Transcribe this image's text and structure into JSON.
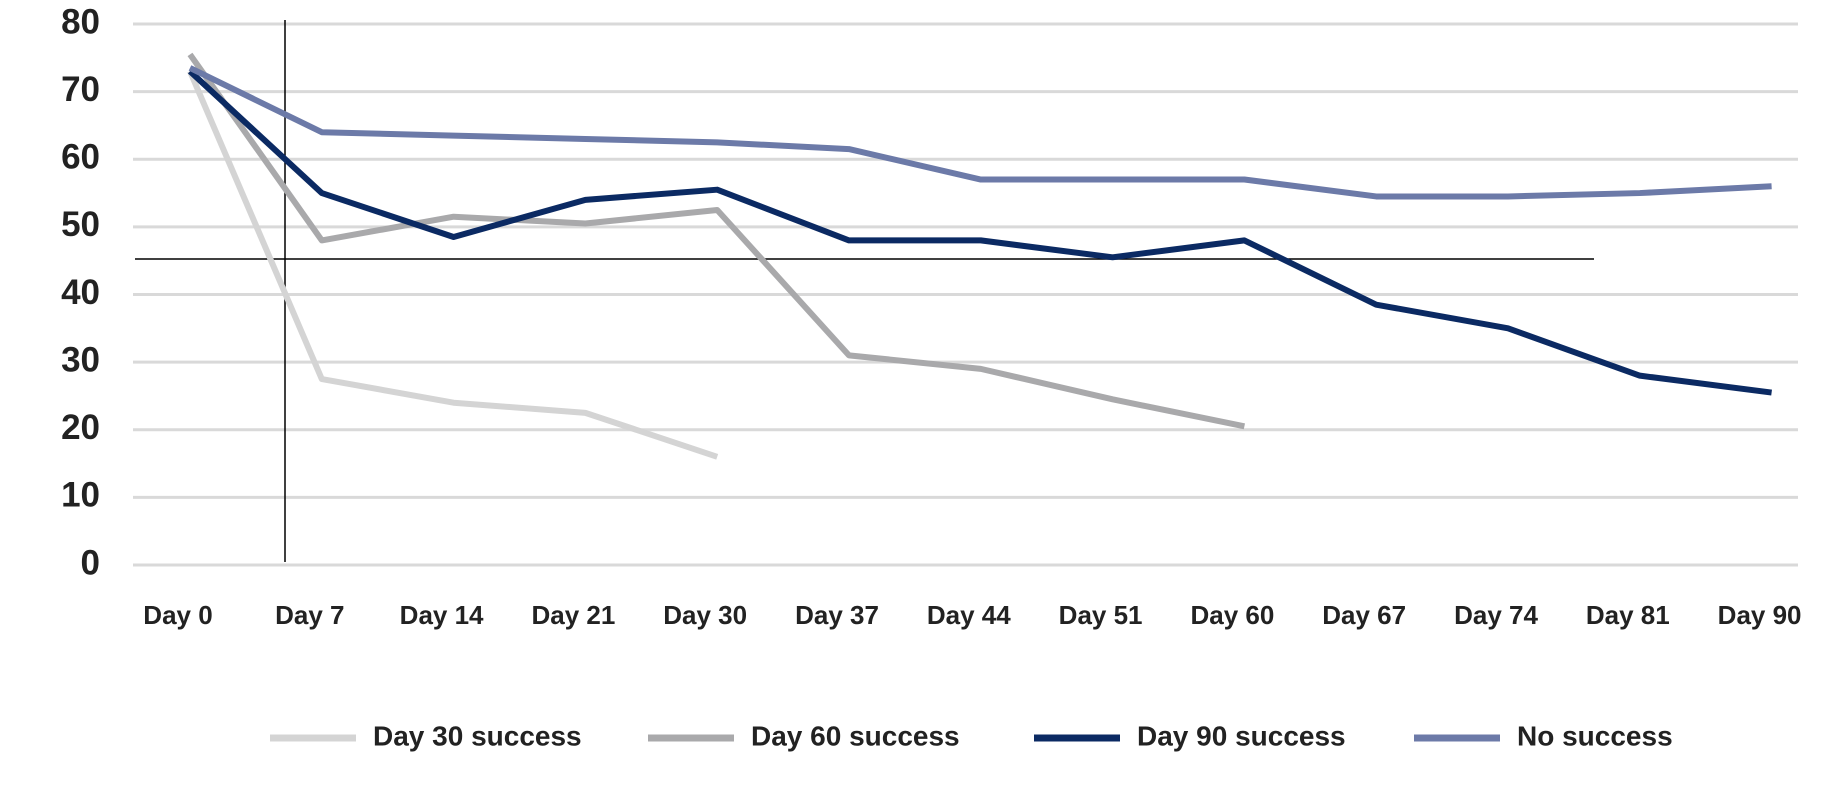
{
  "chart_data": {
    "type": "line",
    "categories": [
      "Day 0",
      "Day 7",
      "Day 14",
      "Day 21",
      "Day 30",
      "Day 37",
      "Day 44",
      "Day 51",
      "Day 60",
      "Day 67",
      "Day 74",
      "Day 81",
      "Day 90"
    ],
    "series": [
      {
        "name": "Day 30 success",
        "color": "#d4d4d4",
        "values": [
          73,
          27.5,
          24,
          22.5,
          16,
          null,
          null,
          null,
          null,
          null,
          null,
          null,
          null
        ]
      },
      {
        "name": "Day 60 success",
        "color": "#a9a9ab",
        "values": [
          75.5,
          48,
          51.5,
          50.5,
          52.5,
          31,
          29,
          24.5,
          20.5,
          null,
          null,
          null,
          null
        ]
      },
      {
        "name": "Day 90 success",
        "color": "#0b2a63",
        "values": [
          73,
          55,
          48.5,
          54,
          55.5,
          48,
          48,
          45.5,
          48,
          38.5,
          35,
          28,
          25.5
        ]
      },
      {
        "name": "No success",
        "color": "#6c7aa8",
        "values": [
          73.5,
          64,
          63.5,
          63,
          62.5,
          61.5,
          57,
          57,
          57,
          54.5,
          54.5,
          55,
          56
        ]
      }
    ],
    "ylim": [
      0,
      80
    ],
    "yticks": [
      0,
      10,
      20,
      30,
      40,
      50,
      60,
      70,
      80
    ],
    "grid": true,
    "legend": "bottom"
  }
}
